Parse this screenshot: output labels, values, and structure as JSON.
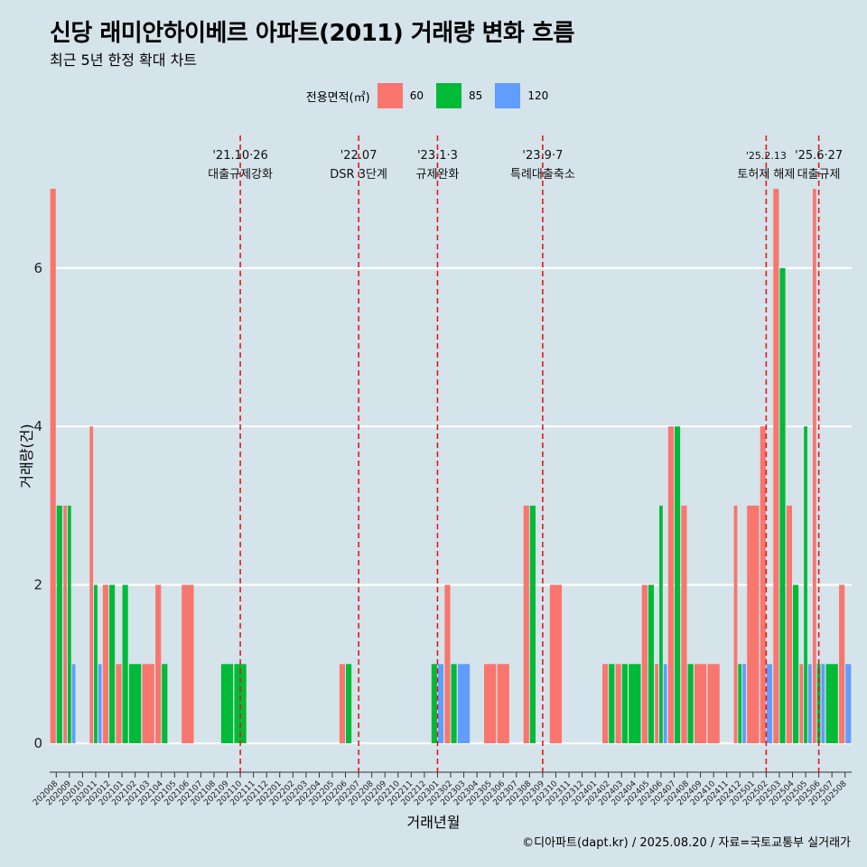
{
  "title": "신당 래미안하이베르 아파트(2011) 거래량 변화 흐름",
  "subtitle": "최근 5년 한정 확대 차트",
  "caption": "©디아파트(dapt.kr) / 2025.08.20 / 자료=국토교통부 실거래가",
  "legend": {
    "title": "전용면적(㎡)",
    "items": [
      {
        "label": "60",
        "color": "#f8766d"
      },
      {
        "label": "85",
        "color": "#00ba38"
      },
      {
        "label": "120",
        "color": "#619cff"
      }
    ]
  },
  "chart_data": {
    "type": "bar",
    "xlabel": "거래년월",
    "ylabel": "거래량(건)",
    "ylim": [
      0,
      7
    ],
    "yticks": [
      0,
      2,
      4,
      6
    ],
    "grid": true,
    "legend_position": "top",
    "categories": [
      "202008",
      "202009",
      "202010",
      "202011",
      "202012",
      "202101",
      "202102",
      "202103",
      "202104",
      "202105",
      "202106",
      "202107",
      "202108",
      "202109",
      "202110",
      "202111",
      "202112",
      "202201",
      "202202",
      "202203",
      "202204",
      "202205",
      "202206",
      "202207",
      "202208",
      "202209",
      "202210",
      "202211",
      "202212",
      "202301",
      "202302",
      "202303",
      "202304",
      "202305",
      "202306",
      "202307",
      "202308",
      "202309",
      "202310",
      "202311",
      "202312",
      "202401",
      "202402",
      "202403",
      "202404",
      "202405",
      "202406",
      "202407",
      "202408",
      "202409",
      "202410",
      "202411",
      "202412",
      "202501",
      "202502",
      "202503",
      "202504",
      "202505",
      "202506",
      "202507",
      "202508"
    ],
    "series": [
      {
        "name": "60",
        "color": "#f8766d",
        "values": [
          7,
          3,
          0,
          4,
          2,
          1,
          0,
          1,
          2,
          0,
          2,
          0,
          0,
          0,
          0,
          0,
          0,
          0,
          0,
          0,
          0,
          0,
          1,
          0,
          0,
          0,
          0,
          0,
          0,
          0,
          2,
          0,
          0,
          1,
          1,
          0,
          3,
          0,
          2,
          0,
          0,
          0,
          1,
          1,
          0,
          2,
          1,
          4,
          3,
          1,
          1,
          0,
          3,
          3,
          4,
          7,
          3,
          1,
          7,
          0,
          2
        ]
      },
      {
        "name": "85",
        "color": "#00ba38",
        "values": [
          3,
          3,
          0,
          2,
          2,
          2,
          1,
          0,
          1,
          0,
          0,
          0,
          0,
          1,
          1,
          0,
          0,
          0,
          0,
          0,
          0,
          0,
          1,
          0,
          0,
          0,
          0,
          0,
          0,
          1,
          1,
          0,
          0,
          0,
          0,
          0,
          3,
          0,
          0,
          0,
          0,
          0,
          1,
          1,
          1,
          2,
          3,
          4,
          1,
          0,
          0,
          0,
          1,
          0,
          0,
          6,
          2,
          4,
          1,
          1,
          0
        ]
      },
      {
        "name": "120",
        "color": "#619cff",
        "values": [
          0,
          1,
          0,
          1,
          0,
          0,
          0,
          0,
          0,
          0,
          0,
          0,
          0,
          0,
          0,
          0,
          0,
          0,
          0,
          0,
          0,
          0,
          0,
          0,
          0,
          0,
          0,
          0,
          0,
          1,
          0,
          1,
          0,
          0,
          0,
          0,
          0,
          0,
          0,
          0,
          0,
          0,
          0,
          0,
          0,
          0,
          1,
          0,
          0,
          0,
          0,
          0,
          1,
          0,
          1,
          0,
          0,
          1,
          1,
          0,
          1
        ]
      }
    ],
    "annotations": [
      {
        "category": "202110",
        "date": "'21.10·26",
        "label": "대출규제강화"
      },
      {
        "category": "202207",
        "date": "'22.07",
        "label": "DSR 3단계"
      },
      {
        "category": "202301",
        "date": "'23.1·3",
        "label": "규제완화"
      },
      {
        "category": "202309",
        "date": "'23.9·7",
        "label": "특례대출축소"
      },
      {
        "category": "202502",
        "date": "'25.2.13",
        "label": "토허제 해제"
      },
      {
        "category": "202506",
        "date": "'25.6·27",
        "label": "대출규제"
      }
    ]
  }
}
